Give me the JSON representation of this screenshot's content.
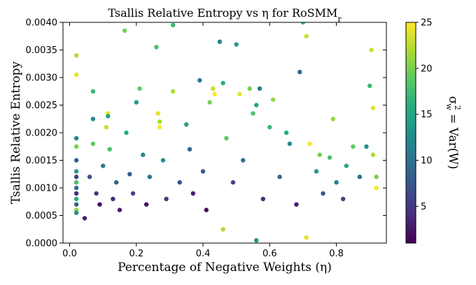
{
  "chart_data": {
    "type": "scatter",
    "title_main": "Tsallis Relative Entropy vs η for RoSMM",
    "title_sub": "r",
    "xlabel": "Percentage of Negative Weights (η)",
    "ylabel": "Tsallis Relative Entropy",
    "colorbar_label_sym": "σ",
    "colorbar_label_sup": "2",
    "colorbar_label_sub": "w",
    "colorbar_label_rest": " = Var(W)",
    "xlim": [
      -0.02,
      0.95
    ],
    "ylim": [
      0.0,
      0.004
    ],
    "clim": [
      1,
      25
    ],
    "x_ticks": [
      0.0,
      0.2,
      0.4,
      0.6,
      0.8
    ],
    "x_tick_labels": [
      "0.0",
      "0.2",
      "0.4",
      "0.6",
      "0.8"
    ],
    "y_ticks": [
      0.0,
      0.0005,
      0.001,
      0.0015,
      0.002,
      0.0025,
      0.003,
      0.0035,
      0.004
    ],
    "y_tick_labels": [
      "0.0000",
      "0.0005",
      "0.0010",
      "0.0015",
      "0.0020",
      "0.0025",
      "0.0030",
      "0.0035",
      "0.0040"
    ],
    "c_ticks": [
      5,
      10,
      15,
      20,
      25
    ],
    "c_tick_labels": [
      "5",
      "10",
      "15",
      "20",
      "25"
    ],
    "colormap": "viridis",
    "grid": false,
    "points": [
      [
        0.02,
        0.0034,
        22
      ],
      [
        0.02,
        0.00305,
        24
      ],
      [
        0.02,
        0.0019,
        12
      ],
      [
        0.02,
        0.00175,
        20
      ],
      [
        0.02,
        0.0015,
        8
      ],
      [
        0.02,
        0.0013,
        14
      ],
      [
        0.02,
        0.0012,
        6
      ],
      [
        0.02,
        0.0011,
        18
      ],
      [
        0.02,
        0.001,
        10
      ],
      [
        0.02,
        0.0009,
        4
      ],
      [
        0.02,
        0.0008,
        16
      ],
      [
        0.02,
        0.0007,
        9
      ],
      [
        0.02,
        0.0006,
        21
      ],
      [
        0.02,
        0.00055,
        13
      ],
      [
        0.045,
        0.00045,
        3
      ],
      [
        0.06,
        0.0012,
        7
      ],
      [
        0.07,
        0.00275,
        17
      ],
      [
        0.07,
        0.00225,
        12
      ],
      [
        0.07,
        0.0018,
        19
      ],
      [
        0.08,
        0.0009,
        5
      ],
      [
        0.09,
        0.0007,
        2
      ],
      [
        0.1,
        0.0014,
        11
      ],
      [
        0.11,
        0.0021,
        23
      ],
      [
        0.115,
        0.00235,
        24
      ],
      [
        0.115,
        0.0023,
        15
      ],
      [
        0.12,
        0.0017,
        18
      ],
      [
        0.13,
        0.0008,
        4
      ],
      [
        0.14,
        0.0011,
        9
      ],
      [
        0.15,
        0.0006,
        3
      ],
      [
        0.165,
        0.00385,
        20
      ],
      [
        0.17,
        0.002,
        16
      ],
      [
        0.18,
        0.00125,
        8
      ],
      [
        0.19,
        0.0009,
        6
      ],
      [
        0.2,
        0.00255,
        14
      ],
      [
        0.21,
        0.0028,
        19
      ],
      [
        0.22,
        0.0016,
        12
      ],
      [
        0.23,
        0.0007,
        2
      ],
      [
        0.24,
        0.0012,
        10
      ],
      [
        0.26,
        0.00355,
        18
      ],
      [
        0.265,
        0.00235,
        24
      ],
      [
        0.27,
        0.0022,
        22
      ],
      [
        0.27,
        0.0021,
        25
      ],
      [
        0.28,
        0.0015,
        13
      ],
      [
        0.29,
        0.0008,
        5
      ],
      [
        0.31,
        0.00395,
        17
      ],
      [
        0.31,
        0.00275,
        22
      ],
      [
        0.33,
        0.0011,
        7
      ],
      [
        0.35,
        0.00215,
        15
      ],
      [
        0.36,
        0.0017,
        9
      ],
      [
        0.37,
        0.0009,
        3
      ],
      [
        0.39,
        0.00295,
        11
      ],
      [
        0.4,
        0.0013,
        8
      ],
      [
        0.41,
        0.0006,
        2
      ],
      [
        0.42,
        0.00255,
        20
      ],
      [
        0.43,
        0.0028,
        23
      ],
      [
        0.435,
        0.0027,
        25
      ],
      [
        0.45,
        0.00365,
        12
      ],
      [
        0.46,
        0.0029,
        16
      ],
      [
        0.46,
        0.00025,
        22
      ],
      [
        0.47,
        0.0019,
        19
      ],
      [
        0.49,
        0.0011,
        6
      ],
      [
        0.5,
        0.0036,
        14
      ],
      [
        0.51,
        0.0027,
        24
      ],
      [
        0.52,
        0.0015,
        10
      ],
      [
        0.54,
        0.0028,
        20
      ],
      [
        0.55,
        0.00235,
        18
      ],
      [
        0.56,
        0.0025,
        15
      ],
      [
        0.56,
        5e-05,
        13
      ],
      [
        0.57,
        0.0028,
        11
      ],
      [
        0.58,
        0.0008,
        4
      ],
      [
        0.6,
        0.0021,
        17
      ],
      [
        0.61,
        0.0026,
        21
      ],
      [
        0.63,
        0.0012,
        9
      ],
      [
        0.65,
        0.002,
        16
      ],
      [
        0.66,
        0.0018,
        12
      ],
      [
        0.68,
        0.0007,
        3
      ],
      [
        0.69,
        0.0031,
        9
      ],
      [
        0.7,
        0.004,
        17
      ],
      [
        0.71,
        0.00375,
        23
      ],
      [
        0.71,
        0.0001,
        24
      ],
      [
        0.72,
        0.0018,
        25
      ],
      [
        0.74,
        0.0013,
        14
      ],
      [
        0.75,
        0.0016,
        20
      ],
      [
        0.76,
        0.0009,
        7
      ],
      [
        0.78,
        0.00155,
        18
      ],
      [
        0.79,
        0.00225,
        21
      ],
      [
        0.8,
        0.0011,
        11
      ],
      [
        0.82,
        0.0008,
        6
      ],
      [
        0.83,
        0.0014,
        15
      ],
      [
        0.85,
        0.00175,
        19
      ],
      [
        0.87,
        0.0012,
        10
      ],
      [
        0.89,
        0.00175,
        13
      ],
      [
        0.9,
        0.00285,
        17
      ],
      [
        0.905,
        0.0035,
        23
      ],
      [
        0.91,
        0.00245,
        24
      ],
      [
        0.91,
        0.0016,
        22
      ],
      [
        0.92,
        0.0012,
        20
      ],
      [
        0.92,
        0.001,
        25
      ]
    ]
  }
}
